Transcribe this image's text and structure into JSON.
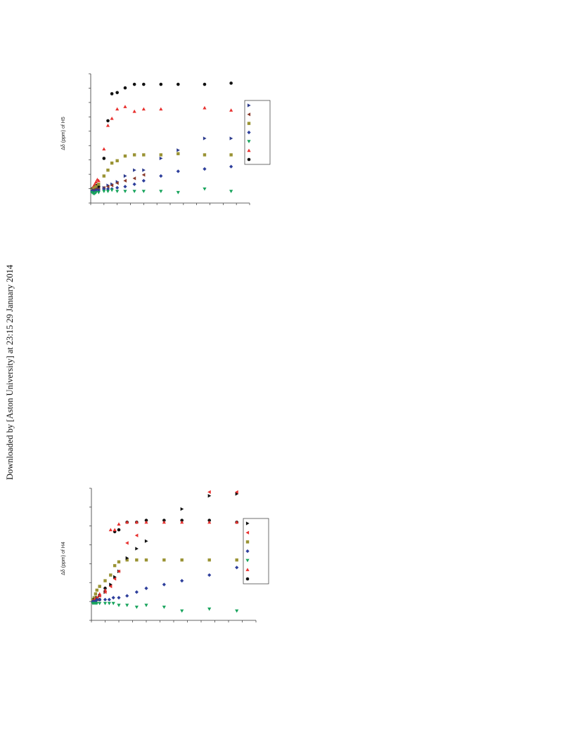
{
  "watermark": "Downloaded by [Aston University] at 23:15 29 January 2014",
  "colors": {
    "black": "#111111",
    "red": "#e8312f",
    "olive": "#9a9334",
    "blue": "#2e3f9c",
    "green": "#16a35b",
    "brown": "#8a3a2a",
    "navy": "#2d3c8e"
  },
  "chart_data": [
    {
      "type": "scatter",
      "ylabel": "Δδ (ppm) of H5",
      "legend": "right",
      "legend_markers": [
        {
          "marker": "triangle-right",
          "color": "navy"
        },
        {
          "marker": "triangle-left",
          "color": "brown"
        },
        {
          "marker": "square",
          "color": "olive"
        },
        {
          "marker": "diamond",
          "color": "blue"
        },
        {
          "marker": "triangle-down",
          "color": "green"
        },
        {
          "marker": "triangle-up",
          "color": "red"
        },
        {
          "marker": "circle",
          "color": "black"
        }
      ],
      "xlim": [
        0,
        6
      ],
      "ylim": [
        -0.1,
        1.0
      ],
      "series": [
        {
          "marker": "circle",
          "color": "black",
          "x": [
            0.05,
            0.1,
            0.15,
            0.2,
            0.25,
            0.3,
            0.5,
            0.65,
            0.8,
            1.0,
            1.3,
            1.65,
            2.0,
            2.65,
            3.3,
            4.3,
            5.3
          ],
          "y": [
            0.02,
            0.03,
            0.04,
            0.05,
            0.03,
            0.04,
            0.28,
            0.6,
            0.83,
            0.84,
            0.88,
            0.91,
            0.91,
            0.91,
            0.91,
            0.91,
            0.92
          ]
        },
        {
          "marker": "triangle-up",
          "color": "red",
          "x": [
            0.05,
            0.1,
            0.15,
            0.2,
            0.25,
            0.3,
            0.5,
            0.65,
            0.8,
            1.0,
            1.3,
            1.65,
            2.0,
            2.65,
            4.3,
            5.3
          ],
          "y": [
            0.02,
            0.04,
            0.06,
            0.08,
            0.1,
            0.09,
            0.36,
            0.56,
            0.62,
            0.7,
            0.72,
            0.68,
            0.7,
            0.7,
            0.71,
            0.69
          ]
        },
        {
          "marker": "square",
          "color": "olive",
          "x": [
            0.05,
            0.1,
            0.15,
            0.2,
            0.3,
            0.5,
            0.65,
            0.8,
            1.0,
            1.3,
            1.65,
            2.0,
            2.65,
            3.3,
            4.3,
            5.3
          ],
          "y": [
            0.01,
            0.02,
            0.03,
            0.04,
            0.06,
            0.13,
            0.18,
            0.24,
            0.26,
            0.3,
            0.31,
            0.31,
            0.31,
            0.32,
            0.31,
            0.31
          ]
        },
        {
          "marker": "triangle-right",
          "color": "navy",
          "x": [
            0.05,
            0.1,
            0.2,
            0.3,
            0.5,
            0.65,
            0.8,
            1.0,
            1.3,
            1.65,
            2.0,
            2.65,
            3.3,
            4.3,
            5.3
          ],
          "y": [
            0.0,
            0.01,
            0.01,
            0.02,
            0.03,
            0.05,
            0.06,
            0.08,
            0.13,
            0.18,
            0.18,
            0.28,
            0.35,
            0.45,
            0.45
          ]
        },
        {
          "marker": "triangle-left",
          "color": "brown",
          "x": [
            0.1,
            0.2,
            0.3,
            0.5,
            0.65,
            0.8,
            1.0,
            1.3,
            1.65,
            2.0
          ],
          "y": [
            0.01,
            0.02,
            0.02,
            0.03,
            0.04,
            0.05,
            0.07,
            0.09,
            0.11,
            0.14
          ]
        },
        {
          "marker": "diamond",
          "color": "blue",
          "x": [
            0.05,
            0.1,
            0.2,
            0.3,
            0.5,
            0.65,
            0.8,
            1.0,
            1.3,
            1.65,
            2.0,
            2.65,
            3.3,
            4.3,
            5.3
          ],
          "y": [
            0.0,
            0.0,
            0.01,
            0.01,
            0.02,
            0.02,
            0.02,
            0.03,
            0.04,
            0.06,
            0.09,
            0.13,
            0.17,
            0.19,
            0.21
          ]
        },
        {
          "marker": "triangle-down",
          "color": "green",
          "x": [
            0.05,
            0.1,
            0.15,
            0.2,
            0.3,
            0.5,
            0.65,
            0.8,
            1.0,
            1.3,
            1.65,
            2.0,
            2.65,
            3.3,
            4.3,
            5.3
          ],
          "y": [
            -0.01,
            -0.02,
            -0.02,
            -0.01,
            -0.01,
            0.0,
            0.0,
            0.01,
            0.0,
            0.0,
            0.0,
            0.0,
            0.0,
            -0.01,
            0.02,
            0.0
          ]
        }
      ]
    },
    {
      "type": "scatter",
      "ylabel": "Δδ (ppm) of H4",
      "legend": "right",
      "legend_markers": [
        {
          "marker": "triangle-right",
          "color": "black"
        },
        {
          "marker": "triangle-left",
          "color": "red"
        },
        {
          "marker": "square",
          "color": "olive"
        },
        {
          "marker": "diamond",
          "color": "blue"
        },
        {
          "marker": "triangle-down",
          "color": "green"
        },
        {
          "marker": "triangle-up",
          "color": "red"
        },
        {
          "marker": "circle",
          "color": "black"
        }
      ],
      "xlim": [
        0,
        6
      ],
      "ylim": [
        -0.1,
        0.6
      ],
      "series": [
        {
          "marker": "circle",
          "color": "black",
          "x": [
            0.05,
            0.1,
            0.15,
            0.2,
            0.3,
            0.5,
            0.85,
            1.0,
            1.3,
            1.65,
            2.0,
            2.65,
            3.3,
            4.3,
            5.3
          ],
          "y": [
            0.0,
            0.01,
            0.02,
            0.01,
            0.01,
            0.07,
            0.37,
            0.38,
            0.42,
            0.42,
            0.43,
            0.43,
            0.43,
            0.43,
            0.42
          ]
        },
        {
          "marker": "triangle-up",
          "color": "red",
          "x": [
            0.05,
            0.1,
            0.2,
            0.3,
            0.5,
            0.7,
            0.85,
            1.0,
            1.3,
            1.65,
            2.0,
            2.65,
            3.3,
            4.3,
            5.3
          ],
          "y": [
            0.01,
            0.01,
            0.02,
            0.04,
            0.06,
            0.38,
            0.38,
            0.41,
            0.42,
            0.42,
            0.42,
            0.42,
            0.42,
            0.42,
            0.42
          ]
        },
        {
          "marker": "square",
          "color": "olive",
          "x": [
            0.05,
            0.1,
            0.15,
            0.2,
            0.3,
            0.5,
            0.7,
            0.85,
            1.0,
            1.3,
            1.65,
            2.0,
            2.65,
            3.3,
            4.3,
            5.3
          ],
          "y": [
            0.01,
            0.02,
            0.04,
            0.06,
            0.08,
            0.11,
            0.14,
            0.19,
            0.21,
            0.22,
            0.22,
            0.22,
            0.22,
            0.22,
            0.22,
            0.22
          ]
        },
        {
          "marker": "triangle-right",
          "color": "black",
          "x": [
            0.1,
            0.2,
            0.3,
            0.5,
            0.7,
            0.85,
            1.0,
            1.3,
            1.65,
            2.0,
            3.3,
            4.3,
            5.3
          ],
          "y": [
            0.01,
            0.02,
            0.03,
            0.05,
            0.09,
            0.13,
            0.16,
            0.23,
            0.28,
            0.32,
            0.49,
            0.56,
            0.57
          ]
        },
        {
          "marker": "triangle-left",
          "color": "red",
          "x": [
            0.1,
            0.2,
            0.3,
            0.5,
            0.7,
            0.85,
            1.0,
            1.3,
            1.65,
            4.3,
            5.3
          ],
          "y": [
            0.01,
            0.02,
            0.03,
            0.05,
            0.08,
            0.12,
            0.16,
            0.31,
            0.35,
            0.58,
            0.58
          ]
        },
        {
          "marker": "diamond",
          "color": "blue",
          "x": [
            0.05,
            0.1,
            0.15,
            0.2,
            0.3,
            0.5,
            0.65,
            0.8,
            1.0,
            1.3,
            1.65,
            2.0,
            2.65,
            3.3,
            4.3,
            5.3
          ],
          "y": [
            0.0,
            0.0,
            0.0,
            0.01,
            0.01,
            0.01,
            0.01,
            0.02,
            0.02,
            0.03,
            0.05,
            0.07,
            0.09,
            0.11,
            0.14,
            0.18
          ]
        },
        {
          "marker": "triangle-down",
          "color": "green",
          "x": [
            0.05,
            0.1,
            0.15,
            0.2,
            0.3,
            0.5,
            0.65,
            0.8,
            1.0,
            1.3,
            1.65,
            2.0,
            2.65,
            3.3,
            4.3,
            5.3
          ],
          "y": [
            -0.01,
            -0.01,
            -0.01,
            -0.01,
            -0.01,
            -0.01,
            -0.01,
            -0.01,
            -0.02,
            -0.02,
            -0.03,
            -0.02,
            -0.03,
            -0.05,
            -0.04,
            -0.05
          ]
        }
      ]
    }
  ]
}
